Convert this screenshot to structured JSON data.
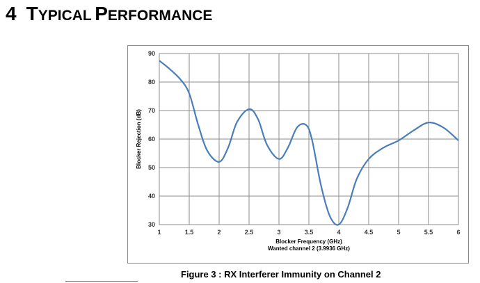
{
  "heading": {
    "number": "4",
    "title": "Typical Performance"
  },
  "figure": {
    "caption": "Figure 3 : RX Interferer Immunity on Channel 2"
  },
  "chart_data": {
    "type": "line",
    "title": "",
    "xlabel": "Blocker Frequency (GHz)",
    "xlabel_line2": "Wanted channel 2 (3.9936 GHz)",
    "ylabel": "Blocker Rejection (dB)",
    "xlim": [
      1,
      6
    ],
    "ylim": [
      30,
      90
    ],
    "xticks": [
      "1",
      "1.5",
      "2",
      "2.5",
      "3",
      "3.5",
      "4",
      "4.5",
      "5",
      "5.5",
      "6"
    ],
    "yticks": [
      "30",
      "40",
      "50",
      "60",
      "70",
      "80",
      "90"
    ],
    "grid": true,
    "legend": "none",
    "line_color": "#4a7ebb",
    "series": [
      {
        "x": [
          1,
          1.15,
          1.35,
          1.5,
          1.65,
          1.8,
          2,
          2.15,
          2.3,
          2.5,
          2.65,
          2.8,
          3,
          3.15,
          3.3,
          3.45,
          3.55,
          3.7,
          3.85,
          4,
          4.15,
          4.3,
          4.5,
          4.75,
          5,
          5.25,
          5.5,
          5.75,
          6
        ],
        "y": [
          87.5,
          85,
          81,
          76,
          65,
          56,
          52,
          57,
          66,
          70.5,
          67,
          58,
          53,
          57,
          64,
          65,
          60,
          44,
          33,
          30,
          36,
          46,
          53,
          57,
          59.5,
          63,
          65.8,
          64,
          59.5
        ]
      }
    ]
  }
}
